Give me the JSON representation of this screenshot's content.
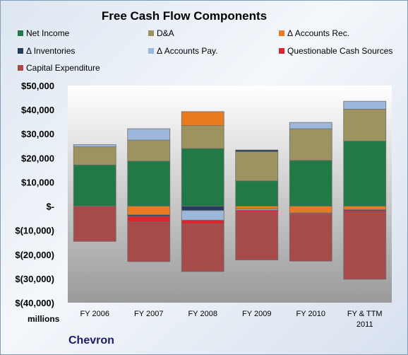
{
  "chart_data": {
    "type": "bar",
    "stacked": true,
    "title": "Free Cash Flow Components",
    "ylabel": "millions",
    "ylim": [
      -40000,
      50000
    ],
    "yticks": [
      {
        "value": 50000,
        "label": "$50,000"
      },
      {
        "value": 40000,
        "label": "$40,000"
      },
      {
        "value": 30000,
        "label": "$30,000"
      },
      {
        "value": 20000,
        "label": "$20,000"
      },
      {
        "value": 10000,
        "label": "$10,000"
      },
      {
        "value": 0,
        "label": "$-"
      },
      {
        "value": -10000,
        "label": "$(10,000)"
      },
      {
        "value": -20000,
        "label": "$(20,000)"
      },
      {
        "value": -30000,
        "label": "$(30,000)"
      },
      {
        "value": -40000,
        "label": "$(40,000)"
      }
    ],
    "categories": [
      "FY 2006",
      "FY 2007",
      "FY 2008",
      "FY 2009",
      "FY 2010",
      "FY & TTM 2011"
    ],
    "series": [
      {
        "name": "Net Income",
        "color": "#217a45",
        "values": [
          17100,
          18700,
          23900,
          10500,
          19000,
          27000
        ]
      },
      {
        "name": "D&A",
        "color": "#9c9360",
        "values": [
          7500,
          8700,
          9500,
          12100,
          13100,
          13200
        ]
      },
      {
        "name": "Δ Accounts Rec.",
        "color": "#e97a1f",
        "values": [
          0,
          -3600,
          5800,
          -1200,
          -2800,
          -1500
        ]
      },
      {
        "name": "Δ Inventories",
        "color": "#243c5e",
        "values": [
          0,
          -600,
          -1800,
          700,
          -200,
          -400
        ]
      },
      {
        "name": "Δ Accounts Pay.",
        "color": "#9cb7d9",
        "values": [
          900,
          4700,
          -4000,
          -500,
          2600,
          3300
        ]
      },
      {
        "name": "Questionable Cash Sources",
        "color": "#d8262c",
        "values": [
          0,
          -2400,
          -1700,
          -600,
          -400,
          -800
        ]
      },
      {
        "name": "Capital Expenditure",
        "color": "#a64a4a",
        "values": [
          -14600,
          -16400,
          -19600,
          -20000,
          -19400,
          -27600
        ]
      }
    ],
    "legend_position": "top",
    "grid": false,
    "company": "Chevron"
  }
}
